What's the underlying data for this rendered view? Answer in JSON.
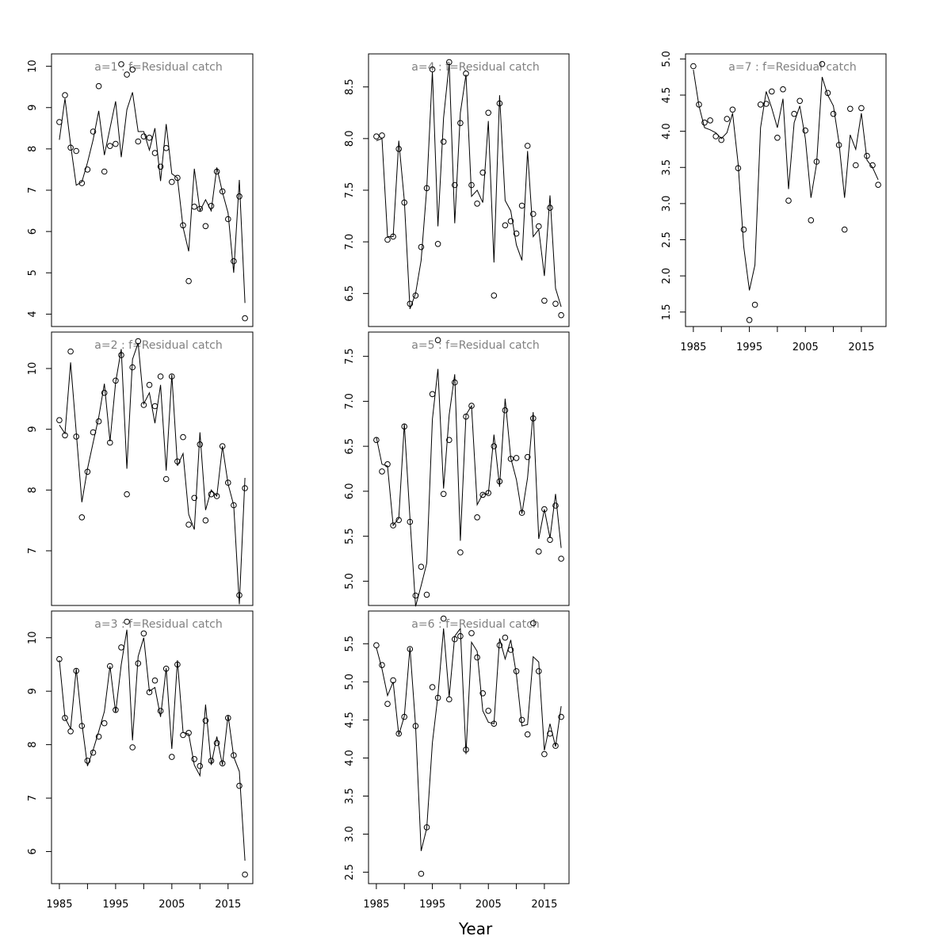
{
  "figure": {
    "xlabel": "Year"
  },
  "chart_data": [
    {
      "type": "line",
      "title": "a=1  :  f=Residual catch",
      "x": [
        1985,
        1986,
        1987,
        1988,
        1989,
        1990,
        1991,
        1992,
        1993,
        1994,
        1995,
        1996,
        1997,
        1998,
        1999,
        2000,
        2001,
        2002,
        2003,
        2004,
        2005,
        2006,
        2007,
        2008,
        2009,
        2010,
        2011,
        2012,
        2013,
        2014,
        2015,
        2016,
        2017,
        2018
      ],
      "points": [
        8.65,
        9.3,
        8.03,
        7.95,
        7.17,
        7.5,
        8.42,
        9.52,
        7.45,
        8.07,
        8.12,
        10.05,
        9.8,
        9.92,
        8.18,
        8.3,
        8.27,
        7.9,
        7.57,
        8.02,
        7.2,
        7.3,
        6.15,
        4.8,
        6.6,
        6.55,
        6.13,
        6.62,
        7.45,
        6.97,
        6.3,
        5.28,
        6.85,
        3.9
      ],
      "fitted": [
        8.22,
        9.22,
        8.1,
        7.12,
        7.2,
        7.67,
        8.22,
        8.92,
        7.85,
        8.5,
        9.15,
        7.8,
        8.95,
        9.37,
        8.42,
        8.42,
        7.97,
        8.5,
        7.22,
        8.6,
        7.4,
        7.3,
        6.1,
        5.52,
        7.52,
        6.5,
        6.77,
        6.5,
        7.55,
        6.95,
        6.45,
        5.0,
        7.25,
        4.27
      ],
      "xlim": [
        1983.6,
        2019.4
      ],
      "ylim": [
        3.7,
        10.3
      ],
      "yticks": [
        4,
        5,
        6,
        7,
        8,
        9,
        10
      ],
      "ytick_labels": [
        "4",
        "5",
        "6",
        "7",
        "8",
        "9",
        "10"
      ],
      "xticks": [],
      "xtick_labels": []
    },
    {
      "type": "line",
      "title": "a=2  :  f=Residual catch",
      "x": [
        1985,
        1986,
        1987,
        1988,
        1989,
        1990,
        1991,
        1992,
        1993,
        1994,
        1995,
        1996,
        1997,
        1998,
        1999,
        2000,
        2001,
        2002,
        2003,
        2004,
        2005,
        2006,
        2007,
        2008,
        2009,
        2010,
        2011,
        2012,
        2013,
        2014,
        2015,
        2016,
        2017,
        2018
      ],
      "points": [
        9.15,
        8.9,
        10.28,
        8.88,
        7.55,
        8.3,
        8.95,
        9.13,
        9.6,
        8.78,
        9.8,
        10.22,
        7.93,
        10.02,
        10.45,
        9.4,
        9.73,
        9.38,
        9.87,
        8.18,
        9.87,
        8.47,
        8.87,
        7.43,
        7.87,
        8.75,
        7.5,
        7.93,
        7.9,
        8.72,
        8.12,
        7.75,
        6.27,
        8.03
      ],
      "fitted": [
        9.07,
        8.93,
        10.1,
        8.95,
        7.8,
        8.35,
        8.78,
        9.2,
        9.75,
        8.8,
        9.77,
        10.32,
        8.35,
        10.15,
        10.42,
        9.42,
        9.6,
        9.1,
        9.73,
        8.32,
        9.9,
        8.4,
        8.6,
        7.6,
        7.35,
        8.95,
        7.67,
        8.0,
        7.9,
        8.72,
        8.1,
        7.75,
        6.12,
        8.2
      ],
      "xlim": [
        1983.6,
        2019.4
      ],
      "ylim": [
        6.1,
        10.6
      ],
      "yticks": [
        7,
        8,
        9,
        10
      ],
      "ytick_labels": [
        "7",
        "8",
        "9",
        "10"
      ],
      "xticks": [],
      "xtick_labels": []
    },
    {
      "type": "line",
      "title": "a=3  :  f=Residual catch",
      "x": [
        1985,
        1986,
        1987,
        1988,
        1989,
        1990,
        1991,
        1992,
        1993,
        1994,
        1995,
        1996,
        1997,
        1998,
        1999,
        2000,
        2001,
        2002,
        2003,
        2004,
        2005,
        2006,
        2007,
        2008,
        2009,
        2010,
        2011,
        2012,
        2013,
        2014,
        2015,
        2016,
        2017,
        2018
      ],
      "points": [
        9.6,
        8.5,
        8.25,
        9.38,
        8.35,
        7.7,
        7.85,
        8.15,
        8.4,
        9.47,
        8.65,
        9.82,
        10.3,
        7.95,
        9.52,
        10.08,
        8.98,
        9.2,
        8.63,
        9.42,
        7.77,
        9.5,
        8.18,
        8.22,
        7.73,
        7.6,
        8.45,
        7.7,
        8.03,
        7.65,
        8.5,
        7.8,
        7.23,
        5.57
      ],
      "fitted": [
        9.58,
        8.5,
        8.3,
        9.42,
        8.4,
        7.6,
        7.9,
        8.25,
        8.62,
        9.47,
        8.6,
        9.5,
        10.15,
        8.08,
        9.65,
        10.0,
        9.0,
        9.07,
        8.52,
        9.43,
        7.92,
        9.58,
        8.23,
        8.2,
        7.62,
        7.42,
        8.75,
        7.62,
        8.15,
        7.62,
        8.55,
        7.77,
        7.5,
        5.83
      ],
      "xlim": [
        1983.6,
        2019.4
      ],
      "ylim": [
        5.4,
        10.5
      ],
      "yticks": [
        6,
        7,
        8,
        9,
        10
      ],
      "ytick_labels": [
        "6",
        "7",
        "8",
        "9",
        "10"
      ],
      "xticks": [
        1985,
        1995,
        2005,
        2015
      ],
      "xtick_labels": [
        "1985",
        "1995",
        "2005",
        "2015"
      ]
    },
    {
      "type": "line",
      "title": "a=4  :  f=Residual catch",
      "x": [
        1985,
        1986,
        1987,
        1988,
        1989,
        1990,
        1991,
        1992,
        1993,
        1994,
        1995,
        1996,
        1997,
        1998,
        1999,
        2000,
        2001,
        2002,
        2003,
        2004,
        2005,
        2006,
        2007,
        2008,
        2009,
        2010,
        2011,
        2012,
        2013,
        2014,
        2015,
        2016,
        2017,
        2018
      ],
      "points": [
        8.02,
        8.03,
        7.02,
        7.05,
        7.9,
        7.38,
        6.4,
        6.48,
        6.95,
        7.52,
        8.67,
        6.98,
        7.97,
        8.74,
        7.55,
        8.15,
        8.63,
        7.55,
        7.37,
        7.67,
        8.25,
        6.48,
        8.34,
        7.16,
        7.2,
        7.08,
        7.35,
        7.93,
        7.27,
        7.15,
        6.43,
        7.33,
        6.4,
        6.29
      ],
      "fitted": [
        7.98,
        8.0,
        7.05,
        7.05,
        7.98,
        7.4,
        6.35,
        6.5,
        6.82,
        7.52,
        8.65,
        7.15,
        8.2,
        8.73,
        7.18,
        8.25,
        8.62,
        7.44,
        7.5,
        7.38,
        8.17,
        6.8,
        8.42,
        7.4,
        7.3,
        6.97,
        6.82,
        7.88,
        7.05,
        7.12,
        6.67,
        7.45,
        6.55,
        6.37
      ],
      "xlim": [
        1983.6,
        2019.4
      ],
      "ylim": [
        6.18,
        8.82
      ],
      "yticks": [
        6.5,
        7.0,
        7.5,
        8.0,
        8.5
      ],
      "ytick_labels": [
        "6.5",
        "7.0",
        "7.5",
        "8.0",
        "8.5"
      ],
      "xticks": [],
      "xtick_labels": []
    },
    {
      "type": "line",
      "title": "a=5  :  f=Residual catch",
      "x": [
        1985,
        1986,
        1987,
        1988,
        1989,
        1990,
        1991,
        1992,
        1993,
        1994,
        1995,
        1996,
        1997,
        1998,
        1999,
        2000,
        2001,
        2002,
        2003,
        2004,
        2005,
        2006,
        2007,
        2008,
        2009,
        2010,
        2011,
        2012,
        2013,
        2014,
        2015,
        2016,
        2017,
        2018
      ],
      "points": [
        6.57,
        6.22,
        6.3,
        5.62,
        5.68,
        6.72,
        5.66,
        4.84,
        5.16,
        4.85,
        7.08,
        7.68,
        5.97,
        6.57,
        7.21,
        5.32,
        6.83,
        6.95,
        5.71,
        5.96,
        5.98,
        6.5,
        6.11,
        6.9,
        6.36,
        6.37,
        5.76,
        6.38,
        6.81,
        5.33,
        5.8,
        5.46,
        5.84,
        5.25
      ],
      "fitted": [
        6.6,
        6.3,
        6.28,
        5.62,
        5.7,
        6.75,
        5.7,
        4.72,
        4.95,
        5.2,
        6.8,
        7.36,
        6.03,
        6.85,
        7.3,
        5.45,
        6.85,
        6.95,
        5.85,
        5.97,
        5.97,
        6.63,
        6.05,
        7.03,
        6.37,
        6.13,
        5.75,
        6.15,
        6.88,
        5.47,
        5.8,
        5.48,
        5.97,
        5.37
      ],
      "xlim": [
        1983.6,
        2019.4
      ],
      "ylim": [
        4.73,
        7.77
      ],
      "yticks": [
        5.0,
        5.5,
        6.0,
        6.5,
        7.0,
        7.5
      ],
      "ytick_labels": [
        "5.0",
        "5.5",
        "6.0",
        "6.5",
        "7.0",
        "7.5"
      ],
      "xticks": [],
      "xtick_labels": []
    },
    {
      "type": "line",
      "title": "a=6  :  f=Residual catch",
      "x": [
        1985,
        1986,
        1987,
        1988,
        1989,
        1990,
        1991,
        1992,
        1993,
        1994,
        1995,
        1996,
        1997,
        1998,
        1999,
        2000,
        2001,
        2002,
        2003,
        2004,
        2005,
        2006,
        2007,
        2008,
        2009,
        2010,
        2011,
        2012,
        2013,
        2014,
        2015,
        2016,
        2017,
        2018
      ],
      "points": [
        5.48,
        5.22,
        4.71,
        5.02,
        4.32,
        4.54,
        5.43,
        4.42,
        2.48,
        3.09,
        4.93,
        4.79,
        5.83,
        4.77,
        5.56,
        5.6,
        4.11,
        5.64,
        5.32,
        4.85,
        4.62,
        4.45,
        5.48,
        5.58,
        5.42,
        5.14,
        4.5,
        4.31,
        5.77,
        5.14,
        4.05,
        4.32,
        4.16,
        4.54
      ],
      "fitted": [
        5.45,
        5.17,
        4.82,
        5.0,
        4.3,
        4.55,
        5.45,
        4.42,
        2.78,
        3.08,
        4.2,
        4.82,
        5.7,
        4.8,
        5.6,
        5.7,
        4.05,
        5.52,
        5.4,
        4.62,
        4.47,
        4.45,
        5.57,
        5.3,
        5.55,
        5.1,
        4.42,
        4.44,
        5.33,
        5.26,
        4.1,
        4.45,
        4.15,
        4.68
      ],
      "xlim": [
        1983.6,
        2019.4
      ],
      "ylim": [
        2.35,
        5.93
      ],
      "yticks": [
        2.5,
        3.0,
        3.5,
        4.0,
        4.5,
        5.0,
        5.5
      ],
      "ytick_labels": [
        "2.5",
        "3.0",
        "3.5",
        "4.0",
        "4.5",
        "5.0",
        "5.5"
      ],
      "xticks": [
        1985,
        1995,
        2005,
        2015
      ],
      "xtick_labels": [
        "1985",
        "1995",
        "2005",
        "2015"
      ]
    },
    {
      "type": "line",
      "title": "a=7  :  f=Residual catch",
      "x": [
        1985,
        1986,
        1987,
        1988,
        1989,
        1990,
        1991,
        1992,
        1993,
        1994,
        1995,
        1996,
        1997,
        1998,
        1999,
        2000,
        2001,
        2002,
        2003,
        2004,
        2005,
        2006,
        2007,
        2008,
        2009,
        2010,
        2011,
        2012,
        2013,
        2014,
        2015,
        2016,
        2017,
        2018
      ],
      "points": [
        4.9,
        4.37,
        4.12,
        4.15,
        3.93,
        3.88,
        4.17,
        4.3,
        3.49,
        2.64,
        1.39,
        1.6,
        4.37,
        4.38,
        4.55,
        3.91,
        4.58,
        3.04,
        4.24,
        4.42,
        4.01,
        2.77,
        3.58,
        4.93,
        4.53,
        4.24,
        3.81,
        2.64,
        4.31,
        3.53,
        4.32,
        3.66,
        3.53,
        3.26
      ],
      "fitted": [
        4.85,
        4.35,
        4.05,
        4.02,
        3.98,
        3.9,
        3.98,
        4.25,
        3.55,
        2.4,
        1.8,
        2.15,
        4.05,
        4.55,
        4.32,
        4.05,
        4.45,
        3.2,
        4.12,
        4.35,
        3.9,
        3.08,
        3.55,
        4.75,
        4.5,
        4.35,
        3.85,
        3.08,
        3.95,
        3.75,
        4.25,
        3.6,
        3.5,
        3.33
      ],
      "xlim": [
        1983.6,
        2019.4
      ],
      "ylim": [
        1.3,
        5.07
      ],
      "yticks": [
        1.5,
        2.0,
        2.5,
        3.0,
        3.5,
        4.0,
        4.5,
        5.0
      ],
      "ytick_labels": [
        "1.5",
        "2.0",
        "2.5",
        "3.0",
        "3.5",
        "4.0",
        "4.5",
        "5.0"
      ],
      "xticks": [
        1985,
        1995,
        2005,
        2015
      ],
      "xtick_labels": [
        "1985",
        "1995",
        "2005",
        "2015"
      ]
    }
  ]
}
